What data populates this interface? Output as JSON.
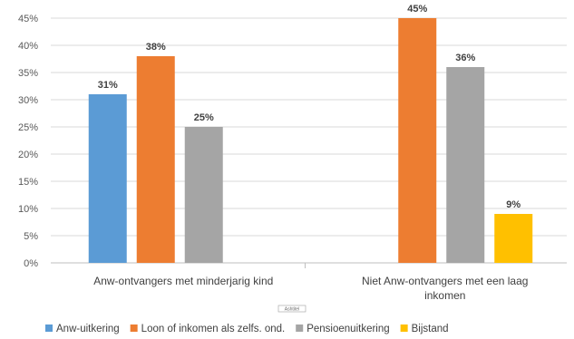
{
  "chart_data": {
    "type": "bar",
    "categories": [
      "Anw-ontvangers met minderjarig kind",
      "Niet Anw-ontvangers met een laag inkomen"
    ],
    "categories_lines": [
      [
        "Anw-ontvangers met minderjarig kind"
      ],
      [
        "Niet Anw-ontvangers met een laag",
        "inkomen"
      ]
    ],
    "series": [
      {
        "name": "Anw-uitkering",
        "color": "#5B9BD5",
        "values": [
          31,
          null
        ],
        "labels": [
          "31%",
          ""
        ]
      },
      {
        "name": "Loon of inkomen als zelfs. ond.",
        "color": "#ED7D31",
        "values": [
          38,
          45
        ],
        "labels": [
          "38%",
          "45%"
        ]
      },
      {
        "name": "Pensioenuitkering",
        "color": "#A5A5A5",
        "values": [
          25,
          36
        ],
        "labels": [
          "25%",
          "36%"
        ]
      },
      {
        "name": "Bijstand",
        "color": "#FFC000",
        "values": [
          null,
          9
        ],
        "labels": [
          "",
          "9%"
        ]
      }
    ],
    "ylim": [
      0,
      45
    ],
    "yticks": [
      0,
      5,
      10,
      15,
      20,
      25,
      30,
      35,
      40,
      45
    ],
    "ytick_labels": [
      "0%",
      "5%",
      "10%",
      "15%",
      "20%",
      "25%",
      "30%",
      "35%",
      "40%",
      "45%"
    ],
    "title": "",
    "xlabel": "",
    "ylabel": "",
    "axis_title_placeholder": "Ashtitel",
    "gridlines": true,
    "legend_position": "bottom"
  }
}
